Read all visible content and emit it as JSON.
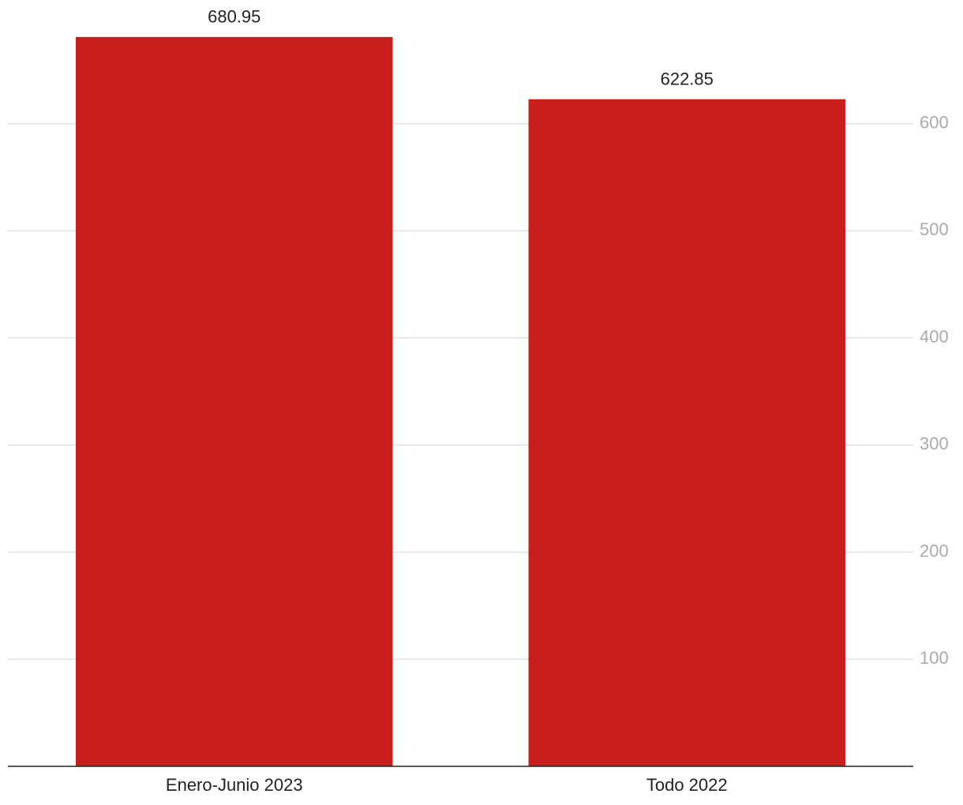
{
  "chart_data": {
    "type": "bar",
    "categories": [
      "Enero-Junio 2023",
      "Todo 2022"
    ],
    "values": [
      680.95,
      622.85
    ],
    "color": "#c81e1e",
    "ylim": [
      0,
      700
    ],
    "yticks": [
      100,
      200,
      300,
      400,
      500,
      600
    ],
    "grid": true,
    "y_axis_side": "right"
  }
}
